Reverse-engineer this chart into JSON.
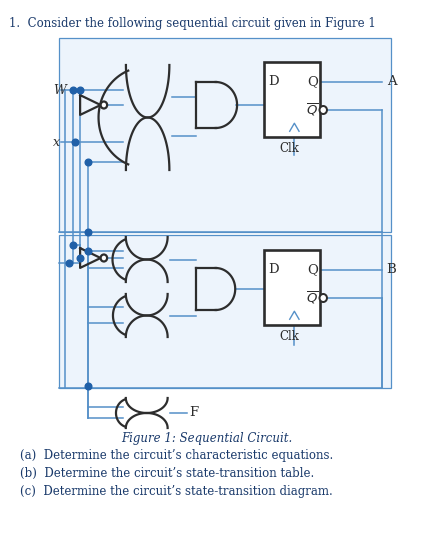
{
  "title": "1.  Consider the following sequential circuit given in Figure 1",
  "figure_caption": "Figure 1: Sequential Circuit.",
  "questions": [
    "(a)  Determine the circuit’s characteristic equations.",
    "(b)  Determine the circuit’s state-transition table.",
    "(c)  Determine the circuit’s state-transition diagram."
  ],
  "bg_color": "#ffffff",
  "text_color": "#1a3a6b",
  "gate_color": "#2d2d2d",
  "line_color": "#5590c8",
  "dot_color": "#2060a8",
  "box_bg": "#edf4fc"
}
